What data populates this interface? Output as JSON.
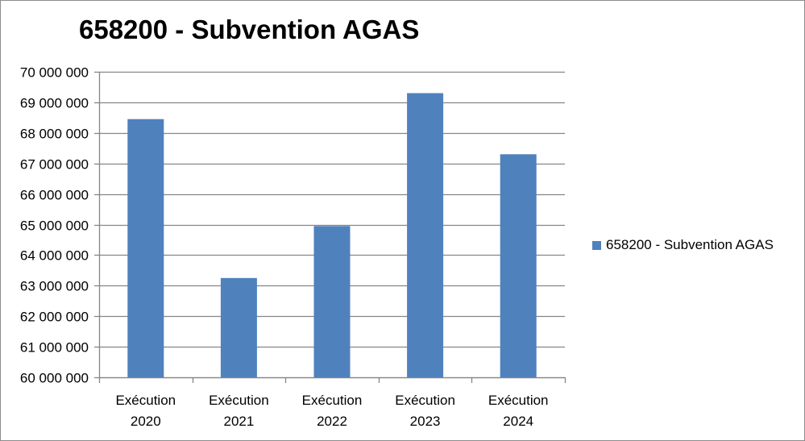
{
  "chart_data": {
    "type": "bar",
    "title": "658200 - Subvention AGAS",
    "categories": [
      "Exécution\n2020",
      "Exécution\n2021",
      "Exécution\n2022",
      "Exécution\n2023",
      "Exécution\n2024"
    ],
    "series": [
      {
        "name": "658200 - Subvention AGAS",
        "values": [
          68450000,
          63250000,
          64950000,
          69300000,
          67300000
        ],
        "color": "#4f81bd"
      }
    ],
    "ylim": [
      60000000,
      70000000
    ],
    "yticks": [
      "70 000 000",
      "69 000 000",
      "68 000 000",
      "67 000 000",
      "66 000 000",
      "65 000 000",
      "64 000 000",
      "63 000 000",
      "62 000 000",
      "61 000 000",
      "60 000 000"
    ],
    "ytick_values": [
      70000000,
      69000000,
      68000000,
      67000000,
      66000000,
      65000000,
      64000000,
      63000000,
      62000000,
      61000000,
      60000000
    ],
    "grid": true,
    "legend_position": "right",
    "xlabel": "",
    "ylabel": ""
  }
}
